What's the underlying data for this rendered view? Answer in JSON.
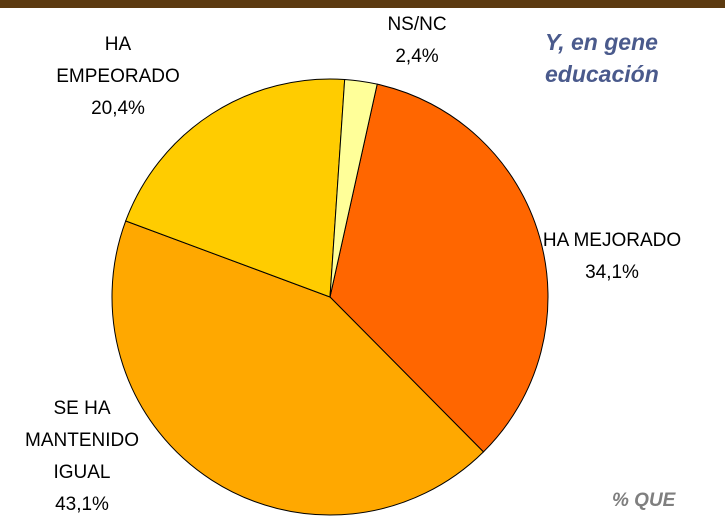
{
  "chart_data": {
    "type": "pie",
    "title_lines": [
      "Y, en gene",
      "educación"
    ],
    "footer": "% QUE",
    "categories": [
      [
        "HA MEJORADO"
      ],
      [
        "SE HA",
        "MANTENIDO",
        "IGUAL"
      ],
      [
        "HA",
        "EMPEORADO"
      ],
      [
        "NS/NC"
      ]
    ],
    "values": [
      34.1,
      43.1,
      20.4,
      2.4
    ],
    "value_labels": [
      "34,1%",
      "43,1%",
      "20,4%",
      "2,4%"
    ],
    "colors": [
      "#ff6600",
      "#ffa800",
      "#ffcc00",
      "#ffff99"
    ]
  }
}
